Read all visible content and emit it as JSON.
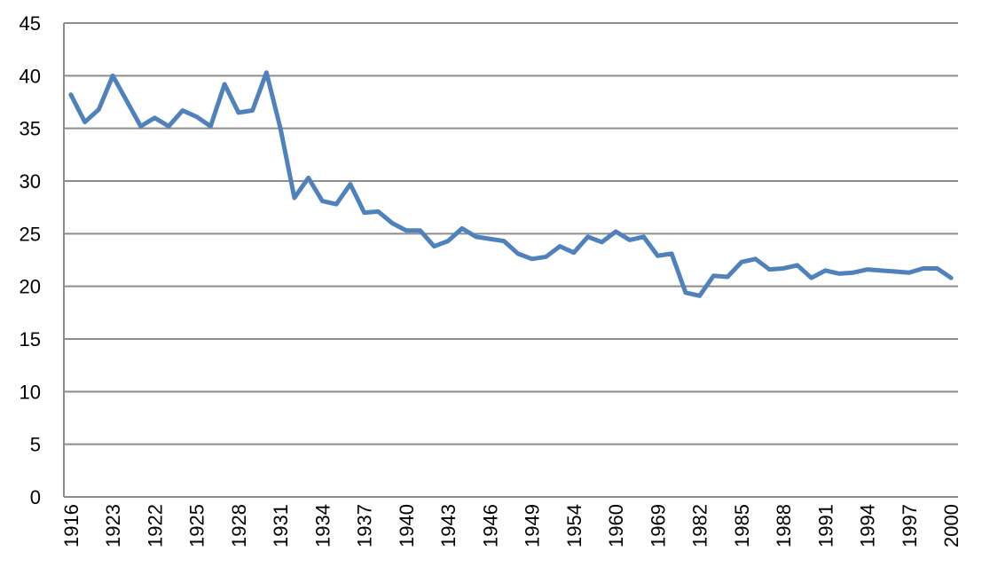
{
  "chart_data": {
    "type": "line",
    "categories": [
      "1916",
      null,
      null,
      "1923",
      null,
      null,
      "1922",
      null,
      null,
      "1925",
      null,
      null,
      "1928",
      null,
      null,
      "1931",
      null,
      null,
      "1934",
      null,
      null,
      "1937",
      null,
      null,
      "1940",
      null,
      null,
      "1943",
      null,
      null,
      "1946",
      null,
      null,
      "1949",
      null,
      null,
      "1954",
      null,
      null,
      "1960",
      null,
      null,
      "1969",
      null,
      null,
      "1982",
      null,
      null,
      "1985",
      null,
      null,
      "1988",
      null,
      null,
      "1991",
      null,
      null,
      "1994",
      null,
      null,
      "1997",
      null,
      null,
      "2000"
    ],
    "values": [
      38.2,
      35.6,
      36.8,
      40.0,
      37.6,
      35.2,
      36.0,
      35.2,
      36.7,
      36.1,
      35.2,
      39.2,
      36.5,
      36.7,
      40.3,
      35.0,
      28.4,
      30.3,
      28.1,
      27.8,
      29.7,
      27.0,
      27.1,
      26.0,
      25.3,
      25.3,
      23.8,
      24.3,
      25.5,
      24.7,
      24.5,
      24.3,
      23.1,
      22.6,
      22.8,
      23.8,
      23.2,
      24.7,
      24.2,
      25.2,
      24.4,
      24.7,
      22.9,
      23.1,
      19.4,
      19.1,
      21.0,
      20.9,
      22.3,
      22.6,
      21.6,
      21.7,
      22.0,
      20.8,
      21.5,
      21.2,
      21.3,
      21.6,
      21.5,
      21.4,
      21.3,
      21.7,
      21.7,
      20.8
    ],
    "color": "#4f81bd",
    "ylim": [
      0,
      45
    ],
    "yticks": [
      0,
      5,
      10,
      15,
      20,
      25,
      30,
      35,
      40,
      45
    ],
    "grid": true
  }
}
